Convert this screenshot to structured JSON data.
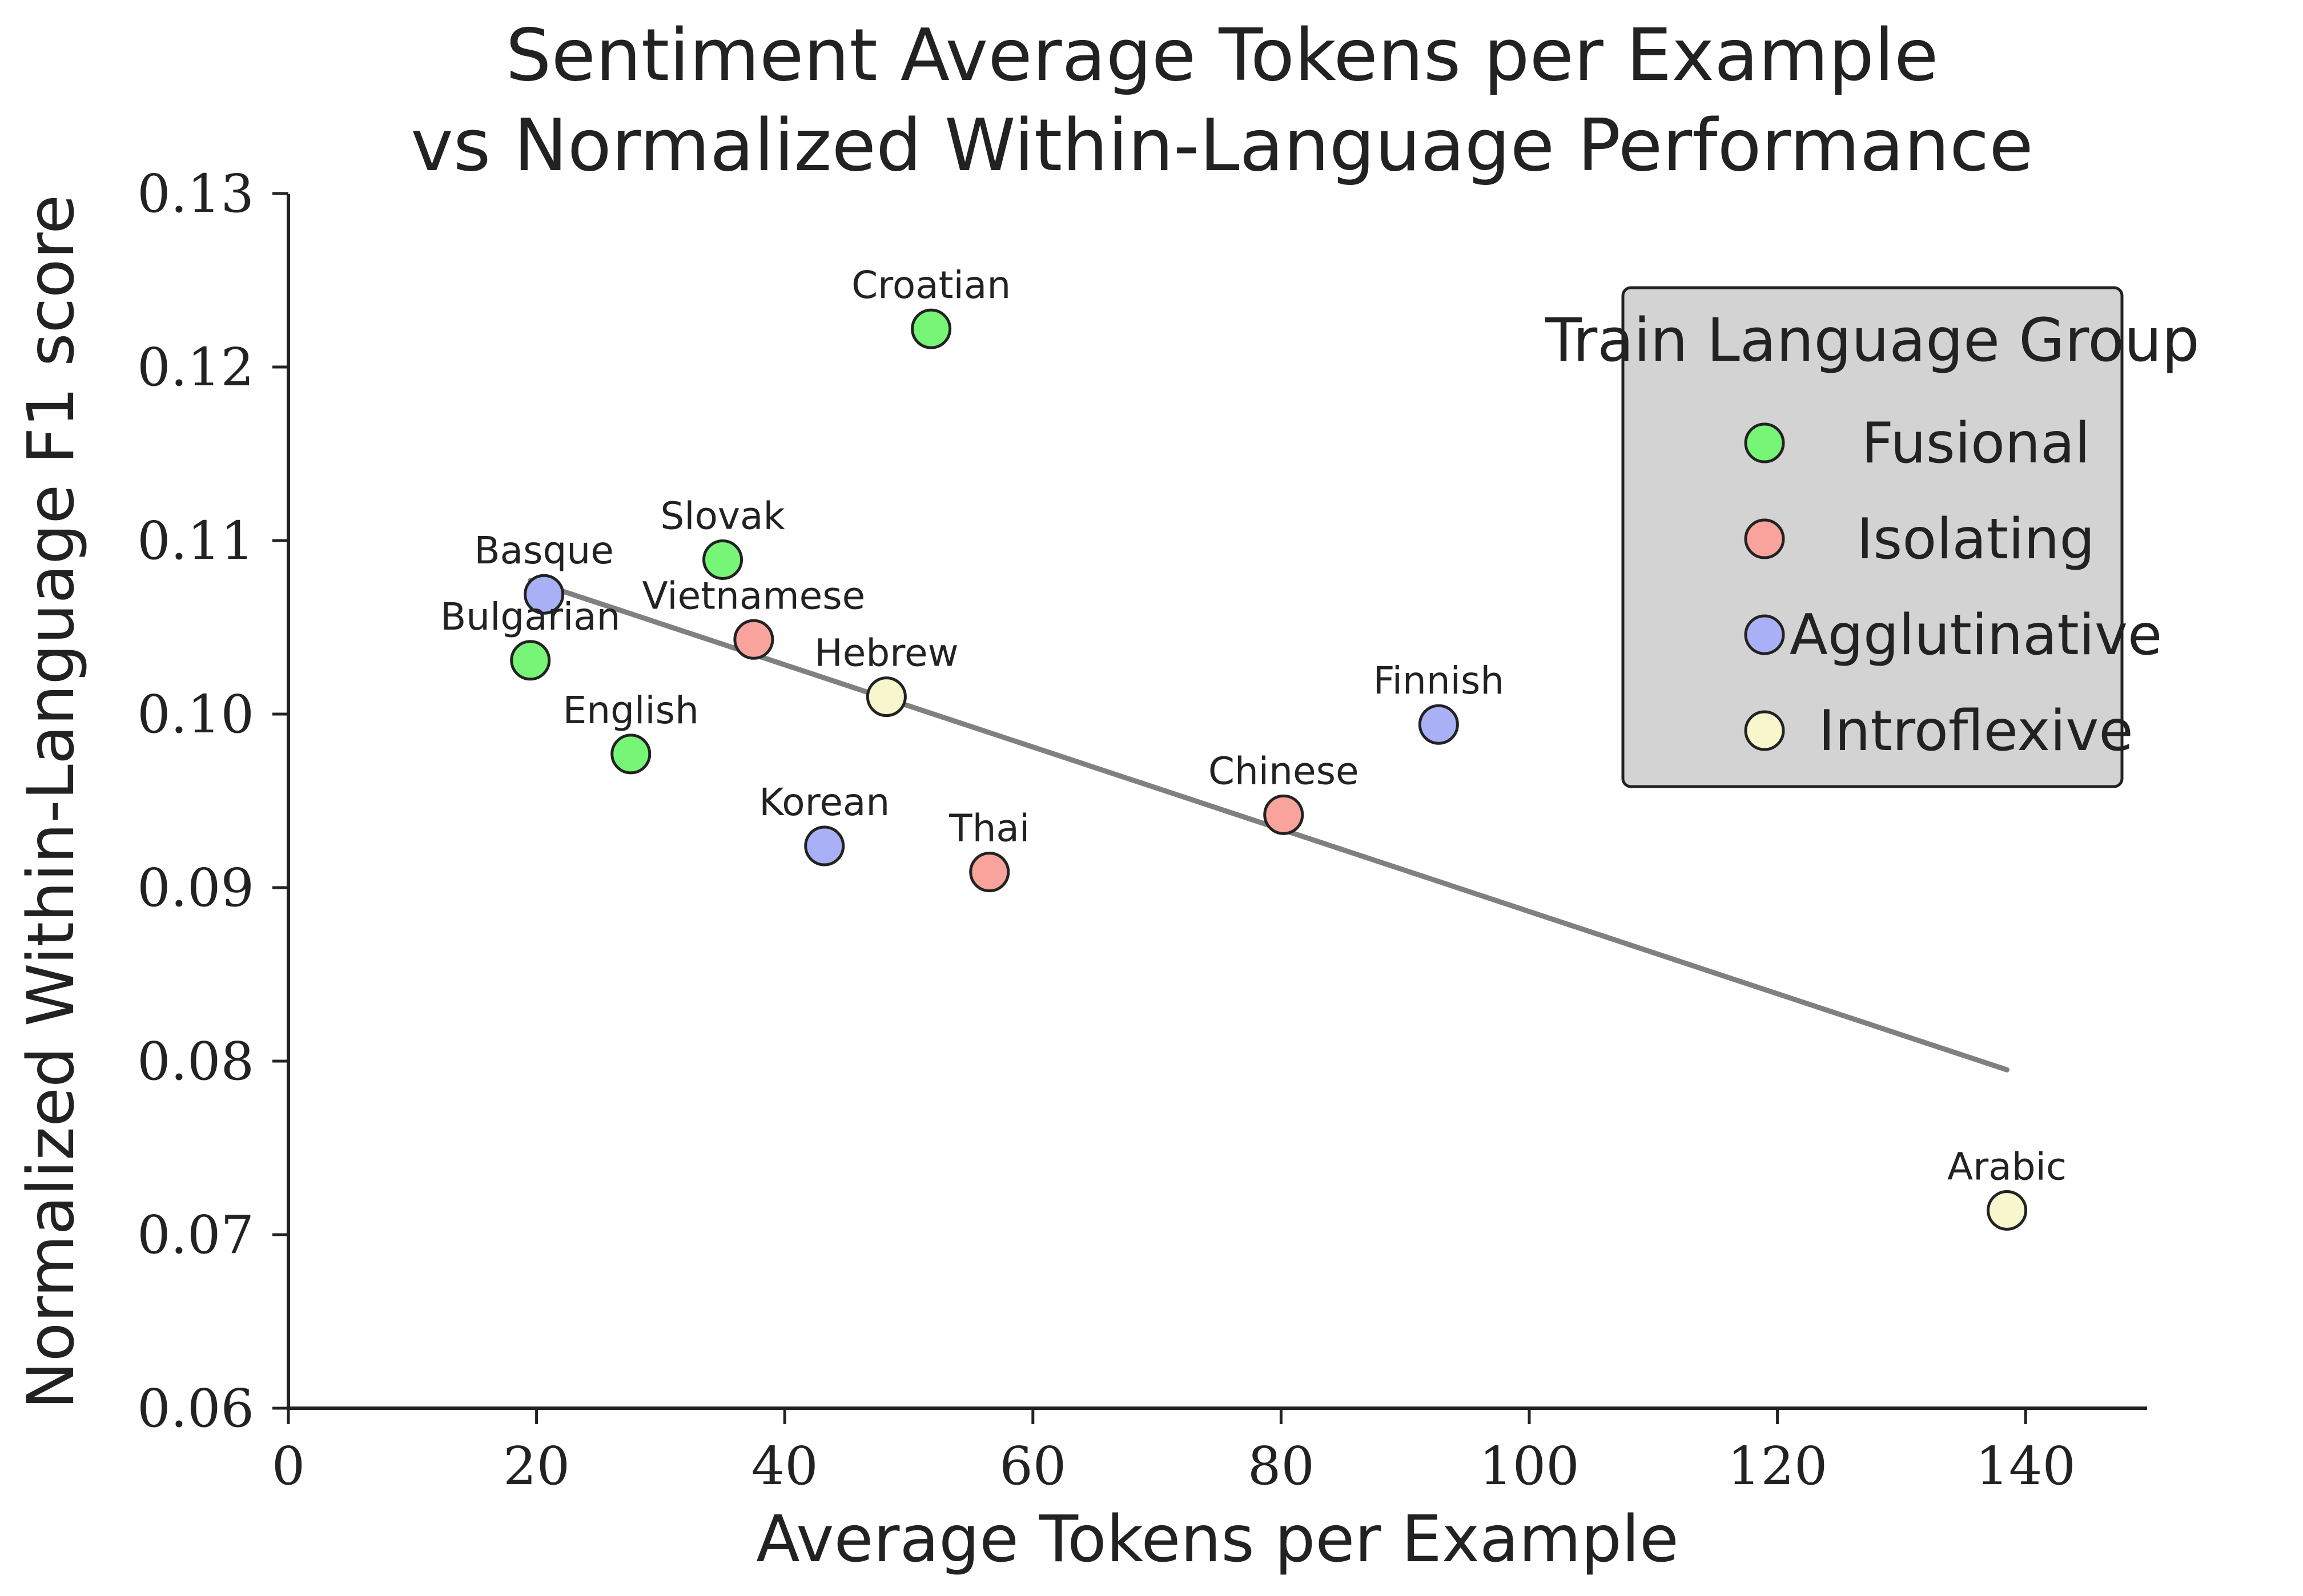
{
  "chart_data": {
    "type": "scatter",
    "title": [
      "Sentiment Average Tokens per Example",
      "vs Normalized Within-Language Performance"
    ],
    "xlabel": "Average Tokens per Example",
    "ylabel": "Normalized Within-Language F1 score",
    "xlim": [
      0,
      150
    ],
    "ylim": [
      0.06,
      0.13
    ],
    "xticks": [
      0,
      20,
      40,
      60,
      80,
      100,
      120,
      140
    ],
    "xtick_labels": [
      "0",
      "20",
      "40",
      "60",
      "80",
      "100",
      "120",
      "140"
    ],
    "yticks": [
      0.06,
      0.07,
      0.08,
      0.09,
      0.1,
      0.11,
      0.12,
      0.13
    ],
    "ytick_labels": [
      "0.06",
      "0.07",
      "0.08",
      "0.09",
      "0.10",
      "0.11",
      "0.12",
      "0.13"
    ],
    "grid": false,
    "legend": {
      "title": "Train Language Group",
      "position": "upper-right",
      "entries": [
        {
          "label": "Fusional",
          "color": "#77f577"
        },
        {
          "label": "Isolating",
          "color": "#f8a39c"
        },
        {
          "label": "Agglutinative",
          "color": "#aab0f5"
        },
        {
          "label": "Introflexive",
          "color": "#f7f6cc"
        }
      ]
    },
    "points": [
      {
        "label": "Croatian",
        "x": 51.8,
        "y": 0.1222,
        "group": "Fusional"
      },
      {
        "label": "Slovak",
        "x": 35.0,
        "y": 0.1089,
        "group": "Fusional"
      },
      {
        "label": "Basque",
        "x": 20.6,
        "y": 0.1069,
        "group": "Agglutinative"
      },
      {
        "label": "Vietnamese",
        "x": 37.5,
        "y": 0.1043,
        "group": "Isolating"
      },
      {
        "label": "Bulgarian",
        "x": 19.5,
        "y": 0.1031,
        "group": "Fusional"
      },
      {
        "label": "Hebrew",
        "x": 48.2,
        "y": 0.101,
        "group": "Introflexive"
      },
      {
        "label": "English",
        "x": 27.6,
        "y": 0.0977,
        "group": "Fusional"
      },
      {
        "label": "Finnish",
        "x": 92.7,
        "y": 0.0994,
        "group": "Agglutinative"
      },
      {
        "label": "Chinese",
        "x": 80.2,
        "y": 0.0942,
        "group": "Isolating"
      },
      {
        "label": "Korean",
        "x": 43.2,
        "y": 0.0924,
        "group": "Agglutinative"
      },
      {
        "label": "Thai",
        "x": 56.5,
        "y": 0.0909,
        "group": "Isolating"
      },
      {
        "label": "Arabic",
        "x": 138.5,
        "y": 0.0714,
        "group": "Introflexive"
      }
    ],
    "trendline": {
      "x": [
        19.5,
        138.5
      ],
      "y": [
        0.1077,
        0.0795
      ],
      "color": "#808080"
    }
  }
}
